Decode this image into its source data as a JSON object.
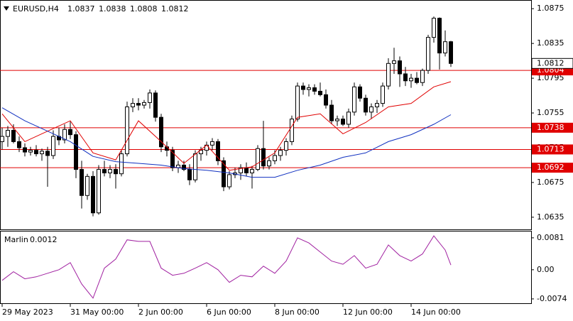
{
  "chart_data": [
    {
      "type": "candlestick",
      "symbol": "EURUSD,H4",
      "open": [
        1.0722,
        1.0728,
        1.0735,
        1.0722,
        1.0715,
        1.071,
        1.0712,
        1.0708,
        1.0711,
        1.0706,
        1.0728,
        1.0724,
        1.0736,
        1.073,
        1.069,
        1.066,
        1.0682,
        1.064,
        1.069,
        1.0686,
        1.069,
        1.0685,
        1.0708,
        1.0762,
        1.0766,
        1.0764,
        1.0767,
        1.0778,
        1.075,
        1.0716,
        1.0712,
        1.0692,
        1.0695,
        1.069,
        1.0678,
        1.0708,
        1.0712,
        1.0718,
        1.0722,
        1.07,
        1.067,
        1.0684,
        1.0686,
        1.0692,
        1.0686,
        1.069,
        1.0714,
        1.0694,
        1.07,
        1.0706,
        1.0712,
        1.0722,
        1.0748,
        1.0786,
        1.0782,
        1.0784,
        1.078,
        1.0776,
        1.0764,
        1.0746,
        1.0748,
        1.0742,
        1.0756,
        1.0785,
        1.0772,
        1.0756,
        1.0762,
        1.0766,
        1.0786,
        1.0812,
        1.0815,
        1.08,
        1.0792,
        1.0795,
        1.079,
        1.0804,
        1.0842,
        1.0864,
        1.0824,
        1.0837
      ],
      "high": [
        1.0738,
        1.074,
        1.0742,
        1.0728,
        1.072,
        1.0716,
        1.0718,
        1.0714,
        1.0716,
        1.0735,
        1.0738,
        1.0742,
        1.0745,
        1.0734,
        1.07,
        1.0685,
        1.0688,
        1.0695,
        1.07,
        1.0695,
        1.0696,
        1.0712,
        1.0768,
        1.0772,
        1.0772,
        1.077,
        1.0782,
        1.0781,
        1.0754,
        1.0722,
        1.0716,
        1.07,
        1.07,
        1.0696,
        1.0712,
        1.0716,
        1.0722,
        1.0726,
        1.0725,
        1.0704,
        1.0688,
        1.0692,
        1.0696,
        1.0698,
        1.0694,
        1.0718,
        1.0746,
        1.0704,
        1.0712,
        1.0716,
        1.0726,
        1.0752,
        1.079,
        1.079,
        1.0788,
        1.0788,
        1.079,
        1.0782,
        1.077,
        1.0752,
        1.0752,
        1.076,
        1.079,
        1.0788,
        1.0776,
        1.0766,
        1.077,
        1.079,
        1.0818,
        1.083,
        1.082,
        1.0808,
        1.08,
        1.0802,
        1.0806,
        1.0845,
        1.0866,
        1.0865,
        1.085,
        1.0838
      ],
      "low": [
        1.0713,
        1.0716,
        1.072,
        1.071,
        1.0705,
        1.0706,
        1.0705,
        1.07,
        1.067,
        1.0702,
        1.0718,
        1.072,
        1.0725,
        1.068,
        1.0645,
        1.0655,
        1.0636,
        1.0638,
        1.0682,
        1.068,
        1.0668,
        1.0682,
        1.0705,
        1.0756,
        1.0758,
        1.076,
        1.076,
        1.0745,
        1.071,
        1.0705,
        1.0688,
        1.0686,
        1.0688,
        1.0672,
        1.0675,
        1.07,
        1.0706,
        1.0712,
        1.0695,
        1.0665,
        1.0667,
        1.068,
        1.0678,
        1.0682,
        1.0668,
        1.0688,
        1.069,
        1.069,
        1.0696,
        1.07,
        1.0706,
        1.0718,
        1.0745,
        1.0776,
        1.0774,
        1.0776,
        1.0774,
        1.076,
        1.0742,
        1.074,
        1.074,
        1.0738,
        1.0752,
        1.0768,
        1.0752,
        1.0748,
        1.0755,
        1.0762,
        1.0782,
        1.08,
        1.0785,
        1.0786,
        1.0784,
        1.0788,
        1.0786,
        1.08,
        1.0836,
        1.0805,
        1.082,
        1.0808
      ],
      "close": [
        1.0728,
        1.0735,
        1.0722,
        1.0715,
        1.071,
        1.0712,
        1.0708,
        1.0711,
        1.0706,
        1.0728,
        1.0724,
        1.0736,
        1.073,
        1.069,
        1.066,
        1.0682,
        1.064,
        1.069,
        1.0686,
        1.069,
        1.0685,
        1.0708,
        1.0762,
        1.0766,
        1.0764,
        1.0767,
        1.0778,
        1.075,
        1.0716,
        1.0712,
        1.0692,
        1.0695,
        1.069,
        1.0678,
        1.0708,
        1.0712,
        1.0718,
        1.0722,
        1.07,
        1.067,
        1.0684,
        1.0686,
        1.0692,
        1.0686,
        1.069,
        1.0714,
        1.0694,
        1.07,
        1.0706,
        1.0712,
        1.0722,
        1.0748,
        1.0786,
        1.0782,
        1.0784,
        1.078,
        1.0776,
        1.0764,
        1.0746,
        1.0748,
        1.0742,
        1.0756,
        1.0785,
        1.0772,
        1.0756,
        1.0762,
        1.0766,
        1.0786,
        1.0812,
        1.0815,
        1.08,
        1.0792,
        1.0795,
        1.079,
        1.0804,
        1.0842,
        1.0864,
        1.0824,
        1.0837,
        1.0812
      ],
      "lines": [
        {
          "color": "#e00000",
          "x": [
            0,
            4,
            8,
            12,
            16,
            20,
            24,
            28,
            32,
            36,
            40,
            44,
            48,
            52,
            56,
            60,
            64,
            68,
            72,
            76,
            79
          ],
          "values": [
            1.0754,
            1.0722,
            1.0734,
            1.0746,
            1.0709,
            1.0701,
            1.0746,
            1.0722,
            1.0697,
            1.0718,
            1.0689,
            1.0693,
            1.0709,
            1.075,
            1.0754,
            1.0731,
            1.0744,
            1.0762,
            1.0766,
            1.0785,
            1.0791
          ]
        },
        {
          "color": "#1030c0",
          "x": [
            0,
            4,
            8,
            12,
            16,
            20,
            24,
            28,
            32,
            36,
            40,
            44,
            48,
            52,
            56,
            60,
            64,
            68,
            72,
            76,
            79
          ],
          "values": [
            1.0761,
            1.0746,
            1.0734,
            1.0722,
            1.0705,
            1.0699,
            1.0697,
            1.0695,
            1.0691,
            1.0689,
            1.0686,
            1.0681,
            1.0681,
            1.0689,
            1.0695,
            1.0704,
            1.0709,
            1.0722,
            1.073,
            1.0742,
            1.0753
          ]
        }
      ],
      "levels": [
        1.0804,
        1.0738,
        1.0713,
        1.0692
      ],
      "level_color": "#e00000",
      "xlim": [
        -0.375,
        93.125
      ],
      "ylim": [
        1.0621,
        1.0885
      ],
      "yticks": [
        1.0875,
        1.0835,
        1.0795,
        1.0755,
        1.0715,
        1.0675,
        1.0635
      ],
      "xticks": [
        {
          "value": 0,
          "label": "29 May 2023"
        },
        {
          "value": 12,
          "label": "31 May 00:00"
        },
        {
          "value": 24,
          "label": "2 Jun 00:00"
        },
        {
          "value": 36,
          "label": "6 Jun 00:00"
        },
        {
          "value": 48,
          "label": "8 Jun 00:00"
        },
        {
          "value": 60,
          "label": "12 Jun 00:00"
        },
        {
          "value": 72,
          "label": "14 Jun 00:00"
        }
      ]
    },
    {
      "type": "line",
      "name": "Marlin",
      "color": "#a020a0",
      "x": [
        0,
        2,
        4,
        6,
        8,
        10,
        12,
        14,
        16,
        18,
        20,
        22,
        24,
        26,
        28,
        30,
        32,
        34,
        36,
        38,
        40,
        42,
        44,
        46,
        48,
        50,
        52,
        54,
        56,
        58,
        60,
        62,
        64,
        66,
        68,
        70,
        72,
        74,
        76,
        78,
        79
      ],
      "values": [
        -0.0027,
        -0.0005,
        -0.0023,
        -0.0018,
        -0.0009,
        0,
        0.0018,
        -0.0036,
        -0.0072,
        0.0004,
        0.0027,
        0.0076,
        0.0072,
        0.0072,
        0.0004,
        -0.0014,
        -0.0009,
        0.0004,
        0.0018,
        0,
        -0.0032,
        -0.0014,
        -0.0018,
        0.0009,
        -0.0009,
        0.0022,
        0.0081,
        0.0068,
        0.0045,
        0.0022,
        0.0014,
        0.0036,
        0.0004,
        0.0014,
        0.0063,
        0.0036,
        0.0022,
        0.004,
        0.0086,
        0.005,
        0.0012
      ],
      "ylim": [
        -0.0085,
        0.0097
      ],
      "yticks": [
        0.0081,
        {
          "value": 0,
          "label": "0.00"
        },
        -0.0074
      ]
    }
  ]
}
